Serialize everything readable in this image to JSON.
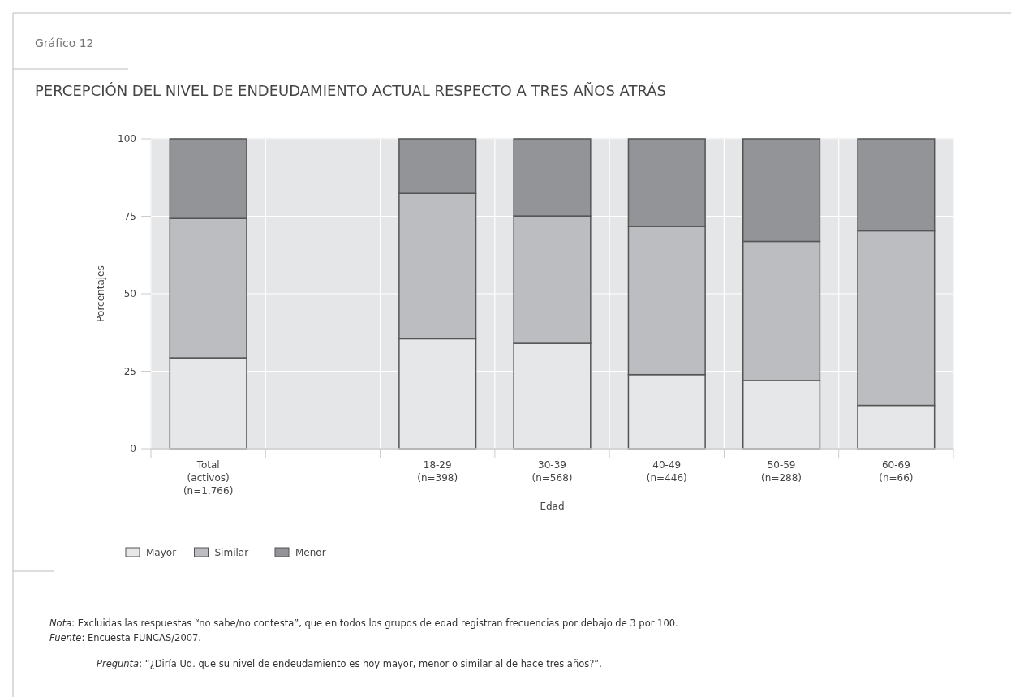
{
  "chart_data": {
    "type": "bar",
    "stacked": true,
    "subtitle": "Gráfico 12",
    "title": "PERCEPCIÓN DEL NIVEL DE ENDEUDAMIENTO ACTUAL RESPECTO A TRES AÑOS ATRÁS",
    "xlabel": "Edad",
    "ylabel": "Porcentajes",
    "categories": [
      "Total\n(activos)\n(n=1.766)",
      null,
      "18-29\n(n=398)",
      "30-39\n(n=568)",
      "40-49\n(n=446)",
      "50-59\n(n=288)",
      "60-69\n(n=66)"
    ],
    "series": [
      {
        "name": "Mayor",
        "color": "#e6e7e9",
        "values": [
          29.3,
          null,
          35.5,
          34.0,
          23.9,
          22.0,
          14.0
        ]
      },
      {
        "name": "Similar",
        "color": "#bcbdc1",
        "values": [
          45.0,
          null,
          46.9,
          41.1,
          47.8,
          44.9,
          56.3
        ]
      },
      {
        "name": "Menor",
        "color": "#939498",
        "values": [
          25.7,
          null,
          17.6,
          24.9,
          28.3,
          33.1,
          29.7
        ]
      }
    ],
    "ylim": [
      0,
      100
    ],
    "yticks": [
      0,
      25,
      50,
      75,
      100
    ],
    "grid": true,
    "legend": "bottom left",
    "annotations": [
      "Nota: Excluidas las respuestas “no sabe/no contesta”, que en todos los grupos de edad registran frecuencias por debajo de 3 por 100.",
      "Fuente: Encuesta FUNCAS/2007.",
      "Pregunta: “¿Diría Ud. que su nivel de endeudamiento es hoy mayor, menor o similar al de hace tres años?”."
    ]
  }
}
